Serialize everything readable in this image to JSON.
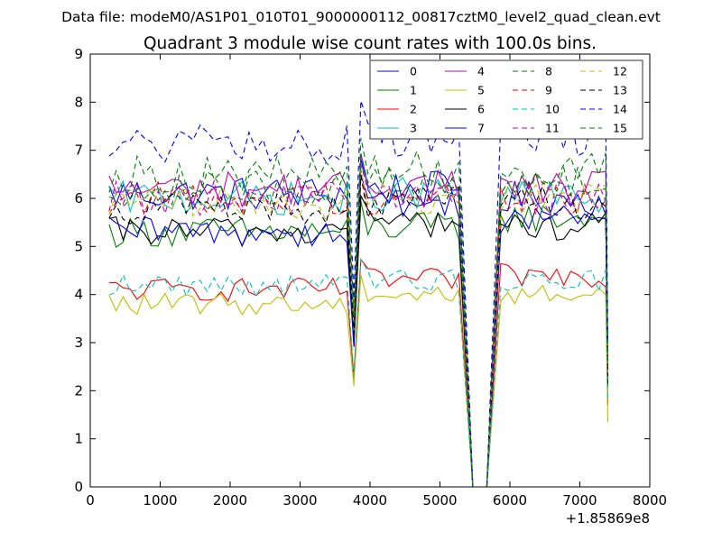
{
  "chart_data": {
    "type": "line",
    "suptitle": "Data file: modeM0/AS1P01_010T01_9000000112_00817cztM0_level2_quad_clean.evt",
    "title": "Quadrant 3 module wise count rates with 100.0s bins.",
    "xlabel": "",
    "ylabel": "",
    "x_offset_label": "+1.85869e8",
    "xlim": [
      0,
      8000
    ],
    "ylim": [
      0,
      9
    ],
    "xticks": [
      "0",
      "1000",
      "2000",
      "3000",
      "4000",
      "5000",
      "6000",
      "7000",
      "8000"
    ],
    "yticks": [
      "0",
      "1",
      "2",
      "3",
      "4",
      "5",
      "6",
      "7",
      "8",
      "9"
    ],
    "legend_position": "top-right",
    "segments": [
      {
        "x_start": 270,
        "x_end": 3670
      },
      {
        "x_start": 3770,
        "x_end": 5270
      },
      {
        "x_start": 5470,
        "x_end": 5670
      },
      {
        "x_start": 5870,
        "x_end": 7370
      }
    ],
    "series": [
      {
        "name": "0",
        "color": "#0000ff",
        "dash": "solid",
        "seg_means": [
          6.1,
          6.2,
          0,
          6.0
        ],
        "tail": 2.5
      },
      {
        "name": "1",
        "color": "#008000",
        "dash": "solid",
        "seg_means": [
          5.3,
          5.4,
          0,
          5.6
        ],
        "tail": 2.1
      },
      {
        "name": "2",
        "color": "#ff0000",
        "dash": "solid",
        "seg_means": [
          4.1,
          4.3,
          0,
          4.4
        ],
        "tail": 1.7
      },
      {
        "name": "3",
        "color": "#00bfbf",
        "dash": "solid",
        "seg_means": [
          6.0,
          6.1,
          0,
          6.0
        ],
        "tail": 2.4
      },
      {
        "name": "4",
        "color": "#bf00bf",
        "dash": "solid",
        "seg_means": [
          6.2,
          6.3,
          0,
          6.2
        ],
        "tail": 2.5
      },
      {
        "name": "5",
        "color": "#bfbf00",
        "dash": "solid",
        "seg_means": [
          3.8,
          4.0,
          0,
          4.0
        ],
        "tail": 1.35
      },
      {
        "name": "6",
        "color": "#000000",
        "dash": "solid",
        "seg_means": [
          5.3,
          5.5,
          0,
          5.4
        ],
        "tail": 2.1
      },
      {
        "name": "7",
        "color": "#0000ff",
        "dash": "solid",
        "seg_means": [
          5.3,
          5.9,
          0,
          5.6
        ],
        "tail": 2.3
      },
      {
        "name": "8",
        "color": "#008000",
        "dash": "dashed",
        "seg_means": [
          6.5,
          6.6,
          0,
          6.6
        ],
        "tail": 2.6
      },
      {
        "name": "9",
        "color": "#ff0000",
        "dash": "dashed",
        "seg_means": [
          6.0,
          6.0,
          0,
          6.0
        ],
        "tail": 2.4
      },
      {
        "name": "10",
        "color": "#00bfbf",
        "dash": "dashed",
        "seg_means": [
          4.2,
          4.3,
          0,
          4.3
        ],
        "tail": 1.8
      },
      {
        "name": "11",
        "color": "#bf00bf",
        "dash": "dashed",
        "seg_means": [
          6.0,
          6.1,
          0,
          6.0
        ],
        "tail": 2.4
      },
      {
        "name": "12",
        "color": "#bfbf00",
        "dash": "dashed",
        "seg_means": [
          5.9,
          6.0,
          0,
          6.0
        ],
        "tail": 2.3
      },
      {
        "name": "13",
        "color": "#000000",
        "dash": "dashed",
        "seg_means": [
          5.8,
          5.9,
          0,
          5.9
        ],
        "tail": 2.3
      },
      {
        "name": "14",
        "color": "#0000ff",
        "dash": "dashed",
        "seg_means": [
          7.1,
          7.3,
          0,
          7.3
        ],
        "tail": 3.0
      },
      {
        "name": "15",
        "color": "#008000",
        "dash": "dashed",
        "seg_means": [
          6.2,
          6.3,
          0,
          6.3
        ],
        "tail": 2.5
      }
    ]
  }
}
